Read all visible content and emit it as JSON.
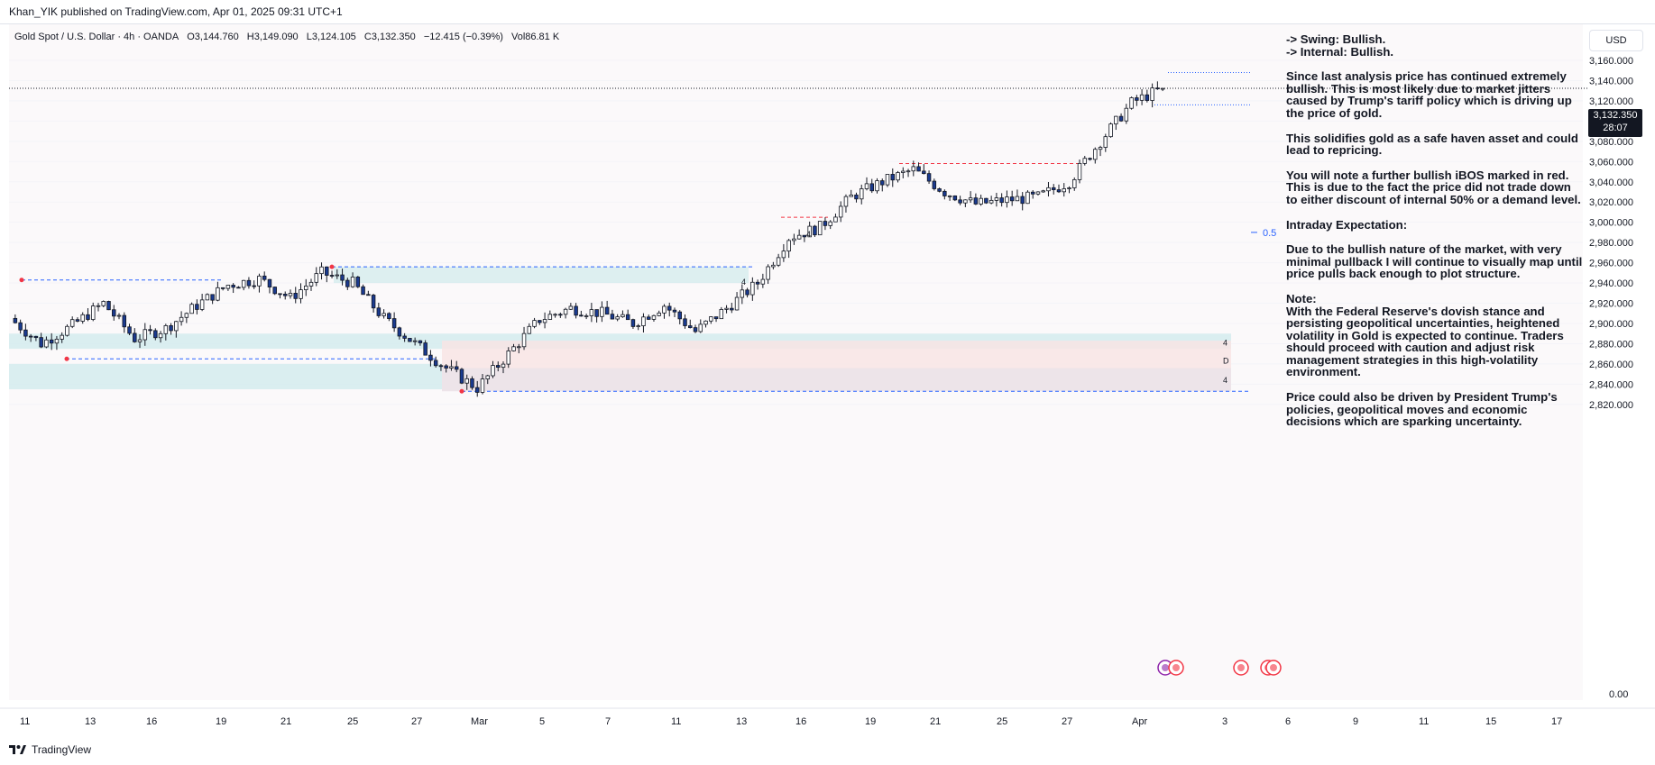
{
  "header": {
    "published_by": "Khan_YIK published on TradingView.com, Apr 01, 2025 09:31 UTC+1"
  },
  "legend": {
    "symbol": "Gold Spot / U.S. Dollar · 4h · OANDA",
    "open": "O3,144.760",
    "high": "H3,149.090",
    "low": "L3,124.105",
    "close": "C3,132.350",
    "change": "−12.415 (−0.39%)",
    "volume": "Vol86.81 K"
  },
  "currency_button": "USD",
  "current_price": {
    "price": "3,132.350",
    "countdown": "28:07"
  },
  "annotation": {
    "swing": "-> Swing:  Bullish.",
    "internal": "-> Internal:  Bullish.",
    "p1": "Since last analysis price has continued extremely bullish.  This is most likely due to market jitters caused by Trump's tariff policy which is driving up the price of gold.",
    "p2": "This solidifies gold as a safe haven asset and could lead to repricing.",
    "p3": "You will note a further bullish iBOS marked in red. This is due to the fact the price did not trade down to either discount of internal 50% or a demand level.",
    "p4": "Intraday Expectation:",
    "p5": "Due to the bullish nature of the market, with very minimal pullback I will continue to visually map until price pulls back enough to plot structure.",
    "p6_title": "Note:",
    "p6": "With the Federal Reserve's dovish stance and persisting geopolitical uncertainties, heightened volatility in Gold is expected to continue. Traders should proceed with caution and adjust risk management strategies in this high-volatility environment.",
    "p7": "Price could also be driven by President Trump's policies, geopolitical moves and economic decisions which are sparking uncertainty."
  },
  "chart_labels": {
    "fib_half": "0.5",
    "zone_label_1": "4",
    "zone_label_d": "D",
    "zone_label_2": "4",
    "bos_label_1": "4",
    "bos_label_2": "4"
  },
  "footer": {
    "brand": "TradingView"
  },
  "colors": {
    "bull_candle": "#ffffff",
    "bear_candle": "#1a3a8f",
    "wick": "#131722",
    "demand_zone": "#d6ecee",
    "supply_zone": "#f9e3e3",
    "structure_line": "#2962ff",
    "ibos_line": "#f23645"
  },
  "chart_data": {
    "type": "candlestick",
    "symbol": "XAUUSD",
    "timeframe": "4h",
    "y_ticks": [
      "3,160.000",
      "3,140.000",
      "3,120.000",
      "3,100.000",
      "3,080.000",
      "3,060.000",
      "3,040.000",
      "3,020.000",
      "3,000.000",
      "2,980.000",
      "2,960.000",
      "2,940.000",
      "2,920.000",
      "2,900.000",
      "2,880.000",
      "2,860.000",
      "2,840.000",
      "2,820.000"
    ],
    "y_ticks_values": [
      3160,
      3140,
      3120,
      3100,
      3080,
      3060,
      3040,
      3020,
      3000,
      2980,
      2960,
      2940,
      2920,
      2900,
      2880,
      2860,
      2840,
      2820
    ],
    "volume_axis_label": "0.00",
    "x_ticks": [
      "11",
      "13",
      "16",
      "19",
      "21",
      "25",
      "27",
      "Mar",
      "5",
      "7",
      "11",
      "13",
      "16",
      "19",
      "21",
      "25",
      "27",
      "Apr",
      "3",
      "6",
      "9",
      "11",
      "15",
      "17"
    ],
    "ylim": [
      2810,
      3165
    ],
    "path": [
      [
        "11",
        2905
      ],
      [
        "12",
        2880
      ],
      [
        "13",
        2898
      ],
      [
        "14",
        2920
      ],
      [
        "16",
        2885
      ],
      [
        "17",
        2895
      ],
      [
        "18",
        2918
      ],
      [
        "19",
        2938
      ],
      [
        "20",
        2944
      ],
      [
        "21",
        2925
      ],
      [
        "24",
        2950
      ],
      [
        "25",
        2940
      ],
      [
        "26",
        2905
      ],
      [
        "27",
        2880
      ],
      [
        "28",
        2856
      ],
      [
        "Mar1",
        2836
      ],
      [
        "Mar3",
        2870
      ],
      [
        "Mar4",
        2904
      ],
      [
        "Mar5",
        2915
      ],
      [
        "Mar6",
        2910
      ],
      [
        "Mar7",
        2900
      ],
      [
        "Mar10",
        2918
      ],
      [
        "Mar11",
        2892
      ],
      [
        "Mar12",
        2915
      ],
      [
        "Mar13",
        2940
      ],
      [
        "Mar14",
        2985
      ],
      [
        "Mar17",
        2995
      ],
      [
        "Mar18",
        3025
      ],
      [
        "Mar19",
        3040
      ],
      [
        "Mar20",
        3052
      ],
      [
        "Mar21",
        3030
      ],
      [
        "Mar24",
        3018
      ],
      [
        "Mar25",
        3022
      ],
      [
        "Mar26",
        3025
      ],
      [
        "Mar27",
        3040
      ],
      [
        "Mar28",
        3080
      ],
      [
        "Mar31",
        3118
      ],
      [
        "Apr1",
        3132.35
      ]
    ],
    "last": {
      "open": 3144.76,
      "high": 3149.09,
      "low": 3124.105,
      "close": 3132.35
    },
    "levels": {
      "swing_high_left": 2943,
      "swing_low_left": 2865,
      "major_high_feb": 2956,
      "swing_low_mar": 2833,
      "ibos_1": 3005,
      "ibos_2": 3058,
      "recent_high": 3148,
      "recent_low": 3116,
      "fib_half": 2990
    },
    "zones": [
      {
        "kind": "demand",
        "from": 2890,
        "to": 2875
      },
      {
        "kind": "demand",
        "from": 2860,
        "to": 2835
      },
      {
        "kind": "discount",
        "from": 2883,
        "to": 2833
      }
    ]
  }
}
